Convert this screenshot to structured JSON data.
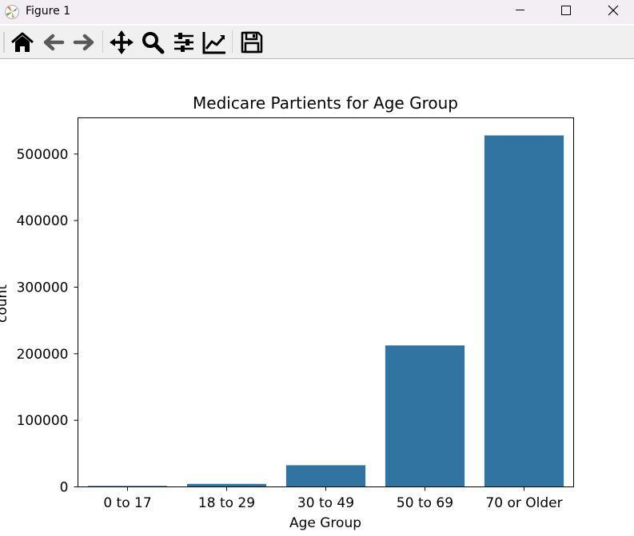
{
  "window": {
    "title": "Figure 1"
  },
  "toolbar": {
    "buttons": [
      "home-icon",
      "back-arrow-icon",
      "forward-arrow-icon",
      "pan-icon",
      "zoom-icon",
      "configure-subplots-icon",
      "edit-axis-icon",
      "save-icon"
    ]
  },
  "colors": {
    "bar": "#3274a1",
    "titlebar": "#f3eef3",
    "toolbar": "#f0f0f0"
  },
  "chart_data": {
    "type": "bar",
    "title": "Medicare Partients for Age Group",
    "xlabel": "Age Group",
    "ylabel": "count",
    "categories": [
      "0 to 17",
      "18 to 29",
      "30 to 49",
      "50 to 69",
      "70 or Older"
    ],
    "values": [
      1500,
      4500,
      32500,
      212500,
      528000
    ],
    "ylim": [
      0,
      554400
    ],
    "yticks": [
      0,
      100000,
      200000,
      300000,
      400000,
      500000
    ],
    "ytick_labels": [
      "0",
      "100000",
      "200000",
      "300000",
      "400000",
      "500000"
    ],
    "grid": false,
    "legend": "none"
  }
}
